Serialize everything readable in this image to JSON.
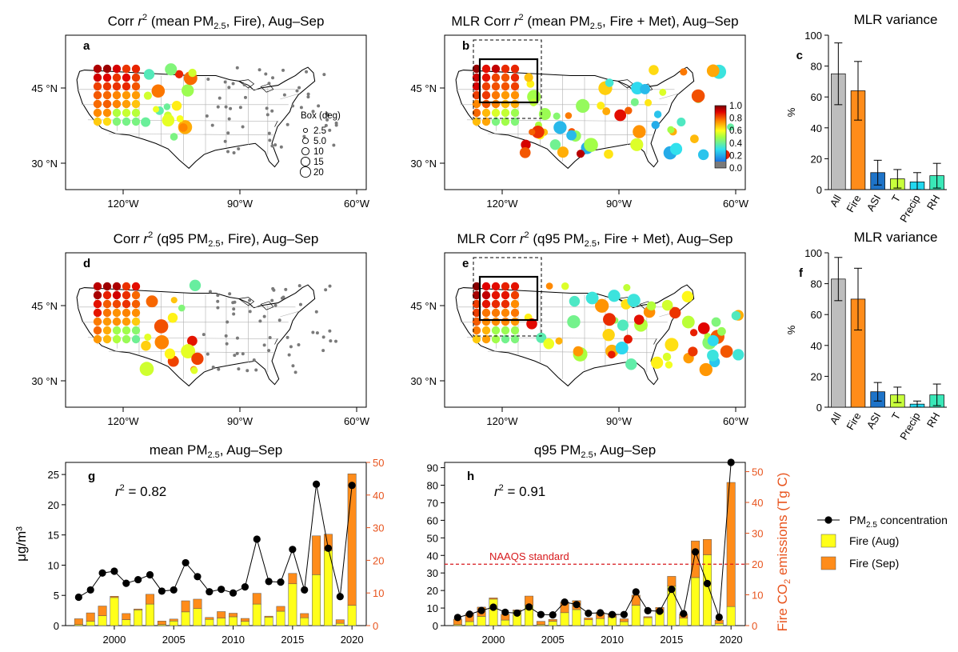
{
  "chart_data": [
    {
      "id": "a",
      "type": "map",
      "title": {
        "pre": "Corr ",
        "r": "r",
        "sup": "2",
        "mid": " (mean PM",
        "sub": "2.5",
        "post": ", Fire), Aug–Sep"
      },
      "panel_label": "a",
      "x_ticks": [
        "120°W",
        "90°W",
        "60°W"
      ],
      "y_ticks": [
        "45 °N",
        "30 °N"
      ],
      "size_legend": {
        "title": "Box (deg)",
        "labels": [
          "2.5",
          "5.0",
          "10",
          "15",
          "20"
        ]
      }
    },
    {
      "id": "b",
      "type": "map",
      "title": {
        "pre": "MLR Corr ",
        "r": "r",
        "sup": "2",
        "mid": " (mean PM",
        "sub": "2.5",
        "post": ", Fire + Met), Aug–Sep"
      },
      "panel_label": "b",
      "x_ticks": [
        "120°W",
        "90°W",
        "60°W"
      ],
      "y_ticks": [
        "45 °N",
        "30 °N"
      ],
      "colorbar": {
        "labels": [
          "1.0",
          "0.8",
          "0.6",
          "0.4",
          "0.2",
          "0.0"
        ]
      }
    },
    {
      "id": "c",
      "type": "bar",
      "title": "MLR variance",
      "panel_label": "c",
      "ylabel": "%",
      "categories": [
        "All",
        "Fire",
        "ASI",
        "T",
        "Precip",
        "RH"
      ],
      "values": [
        75,
        64,
        11,
        7,
        5,
        9
      ],
      "errors": [
        20,
        19,
        8,
        6,
        6,
        8
      ],
      "ylim": [
        0,
        100
      ],
      "yticks": [
        0,
        20,
        40,
        60,
        80,
        100
      ],
      "colors": [
        "#bdbdbd",
        "#ff8c1a",
        "#1e73c8",
        "#c8ff3c",
        "#22d8f0",
        "#3ae8b8"
      ]
    },
    {
      "id": "d",
      "type": "map",
      "title": {
        "pre": "Corr ",
        "r": "r",
        "sup": "2",
        "mid": " (q95 PM",
        "sub": "2.5",
        "post": ", Fire), Aug–Sep"
      },
      "panel_label": "d",
      "x_ticks": [
        "120°W",
        "90°W",
        "60°W"
      ],
      "y_ticks": [
        "45 °N",
        "30 °N"
      ]
    },
    {
      "id": "e",
      "type": "map",
      "title": {
        "pre": "MLR Corr ",
        "r": "r",
        "sup": "2",
        "mid": " (q95 PM",
        "sub": "2.5",
        "post": ", Fire + Met), Aug–Sep"
      },
      "panel_label": "e",
      "x_ticks": [
        "120°W",
        "90°W",
        "60°W"
      ],
      "y_ticks": [
        "45 °N",
        "30 °N"
      ]
    },
    {
      "id": "f",
      "type": "bar",
      "title": "MLR variance",
      "panel_label": "f",
      "ylabel": "%",
      "categories": [
        "All",
        "Fire",
        "ASI",
        "T",
        "Precip",
        "RH"
      ],
      "values": [
        83,
        70,
        10,
        8,
        2,
        8
      ],
      "errors": [
        14,
        20,
        6,
        5,
        2,
        7
      ],
      "ylim": [
        0,
        100
      ],
      "yticks": [
        0,
        20,
        40,
        60,
        80,
        100
      ],
      "colors": [
        "#bdbdbd",
        "#ff8c1a",
        "#1e73c8",
        "#c8ff3c",
        "#22d8f0",
        "#3ae8b8"
      ]
    },
    {
      "id": "g",
      "type": "bar+line",
      "title": {
        "pre": "mean PM",
        "sub": "2.5",
        "post": ", Aug–Sep"
      },
      "panel_label": "g",
      "r2_text": {
        "r": "r",
        "sup": "2",
        "val": "= 0.82"
      },
      "ylabel": "μg/m³",
      "ylim": [
        0,
        27
      ],
      "yticks": [
        0,
        5,
        10,
        15,
        20,
        25
      ],
      "y2lim": [
        0,
        50
      ],
      "y2ticks": [
        0,
        10,
        20,
        30,
        40,
        50
      ],
      "xticks": [
        2000,
        2005,
        2010,
        2015,
        2020
      ],
      "x": [
        1997,
        1998,
        1999,
        2000,
        2001,
        2002,
        2003,
        2004,
        2005,
        2006,
        2007,
        2008,
        2009,
        2010,
        2011,
        2012,
        2013,
        2014,
        2015,
        2016,
        2017,
        2018,
        2019,
        2020
      ],
      "series": [
        {
          "name": "PM2.5 concentration",
          "values": [
            4.7,
            5.9,
            8.7,
            9.0,
            7.0,
            7.6,
            8.4,
            5.7,
            5.9,
            10.4,
            8.1,
            5.6,
            6.0,
            5.4,
            6.4,
            14.3,
            7.3,
            7.2,
            12.6,
            5.9,
            23.4,
            12.8,
            4.8,
            23.2
          ]
        },
        {
          "name": "Fire (Aug)",
          "values": [
            0.3,
            1.3,
            3.0,
            8.6,
            1.8,
            4.8,
            6.6,
            0.3,
            1.4,
            4.2,
            5.2,
            1.9,
            2.3,
            2.7,
            1.3,
            6.6,
            2.6,
            4.4,
            12.8,
            2.4,
            15.6,
            23.0,
            0.7,
            6.2
          ]
        },
        {
          "name": "Fire (Sep)",
          "values": [
            1.8,
            2.6,
            3.0,
            0.4,
            1.9,
            0.3,
            3.0,
            1.1,
            0.6,
            3.4,
            2.9,
            0.6,
            2.0,
            1.1,
            0.9,
            3.3,
            0.3,
            1.5,
            3.2,
            1.3,
            11.9,
            5.0,
            1.1,
            40.3
          ]
        }
      ]
    },
    {
      "id": "h",
      "type": "bar+line",
      "title": {
        "pre": "q95 PM",
        "sub": "2.5",
        "post": ", Aug–Sep"
      },
      "panel_label": "h",
      "r2_text": {
        "r": "r",
        "sup": "2",
        "val": "= 0.91"
      },
      "ylabel": {
        "pre": "Fire CO",
        "sub": "2",
        "post": " emissions (Tg C)"
      },
      "ylim": [
        0,
        93
      ],
      "yticks": [
        0,
        10,
        20,
        30,
        40,
        50,
        60,
        70,
        80,
        90
      ],
      "y2lim": [
        0,
        53
      ],
      "y2ticks": [
        0,
        10,
        20,
        30,
        40,
        50
      ],
      "xticks": [
        2000,
        2005,
        2010,
        2015,
        2020
      ],
      "hline": {
        "value": 35,
        "label": "NAAQS standard",
        "color": "#d7191c"
      },
      "x": [
        1997,
        1998,
        1999,
        2000,
        2001,
        2002,
        2003,
        2004,
        2005,
        2006,
        2007,
        2008,
        2009,
        2010,
        2011,
        2012,
        2013,
        2014,
        2015,
        2016,
        2017,
        2018,
        2019,
        2020
      ],
      "series": [
        {
          "name": "PM2.5 concentration",
          "values": [
            4.6,
            6.5,
            8.6,
            10.5,
            7.6,
            7.1,
            10.6,
            6.3,
            6.1,
            13.4,
            12.0,
            7.0,
            7.3,
            6.3,
            6.3,
            19.2,
            8.5,
            8.2,
            20.7,
            6.8,
            42.0,
            24.0,
            4.8,
            93.0
          ]
        },
        {
          "name": "Fire (Aug)",
          "values": [
            0.3,
            1.3,
            3.0,
            8.6,
            1.8,
            4.8,
            6.6,
            0.3,
            1.4,
            4.2,
            5.2,
            1.9,
            2.3,
            2.7,
            1.3,
            6.6,
            2.6,
            4.4,
            12.8,
            2.4,
            15.6,
            23.0,
            0.7,
            6.2
          ]
        },
        {
          "name": "Fire (Sep)",
          "values": [
            1.8,
            2.6,
            3.0,
            0.4,
            1.9,
            0.3,
            3.0,
            1.1,
            0.6,
            3.4,
            2.9,
            0.6,
            2.0,
            1.1,
            0.9,
            3.3,
            0.3,
            1.5,
            3.2,
            1.3,
            11.9,
            5.0,
            1.1,
            40.3
          ]
        }
      ]
    }
  ],
  "legend": {
    "pm": {
      "pre": "PM",
      "sub": "2.5",
      "post": " concentration"
    },
    "aug": "Fire (Aug)",
    "sep": "Fire (Sep)",
    "colors": {
      "aug": "#ffff1a",
      "sep": "#ff8c1a"
    }
  }
}
